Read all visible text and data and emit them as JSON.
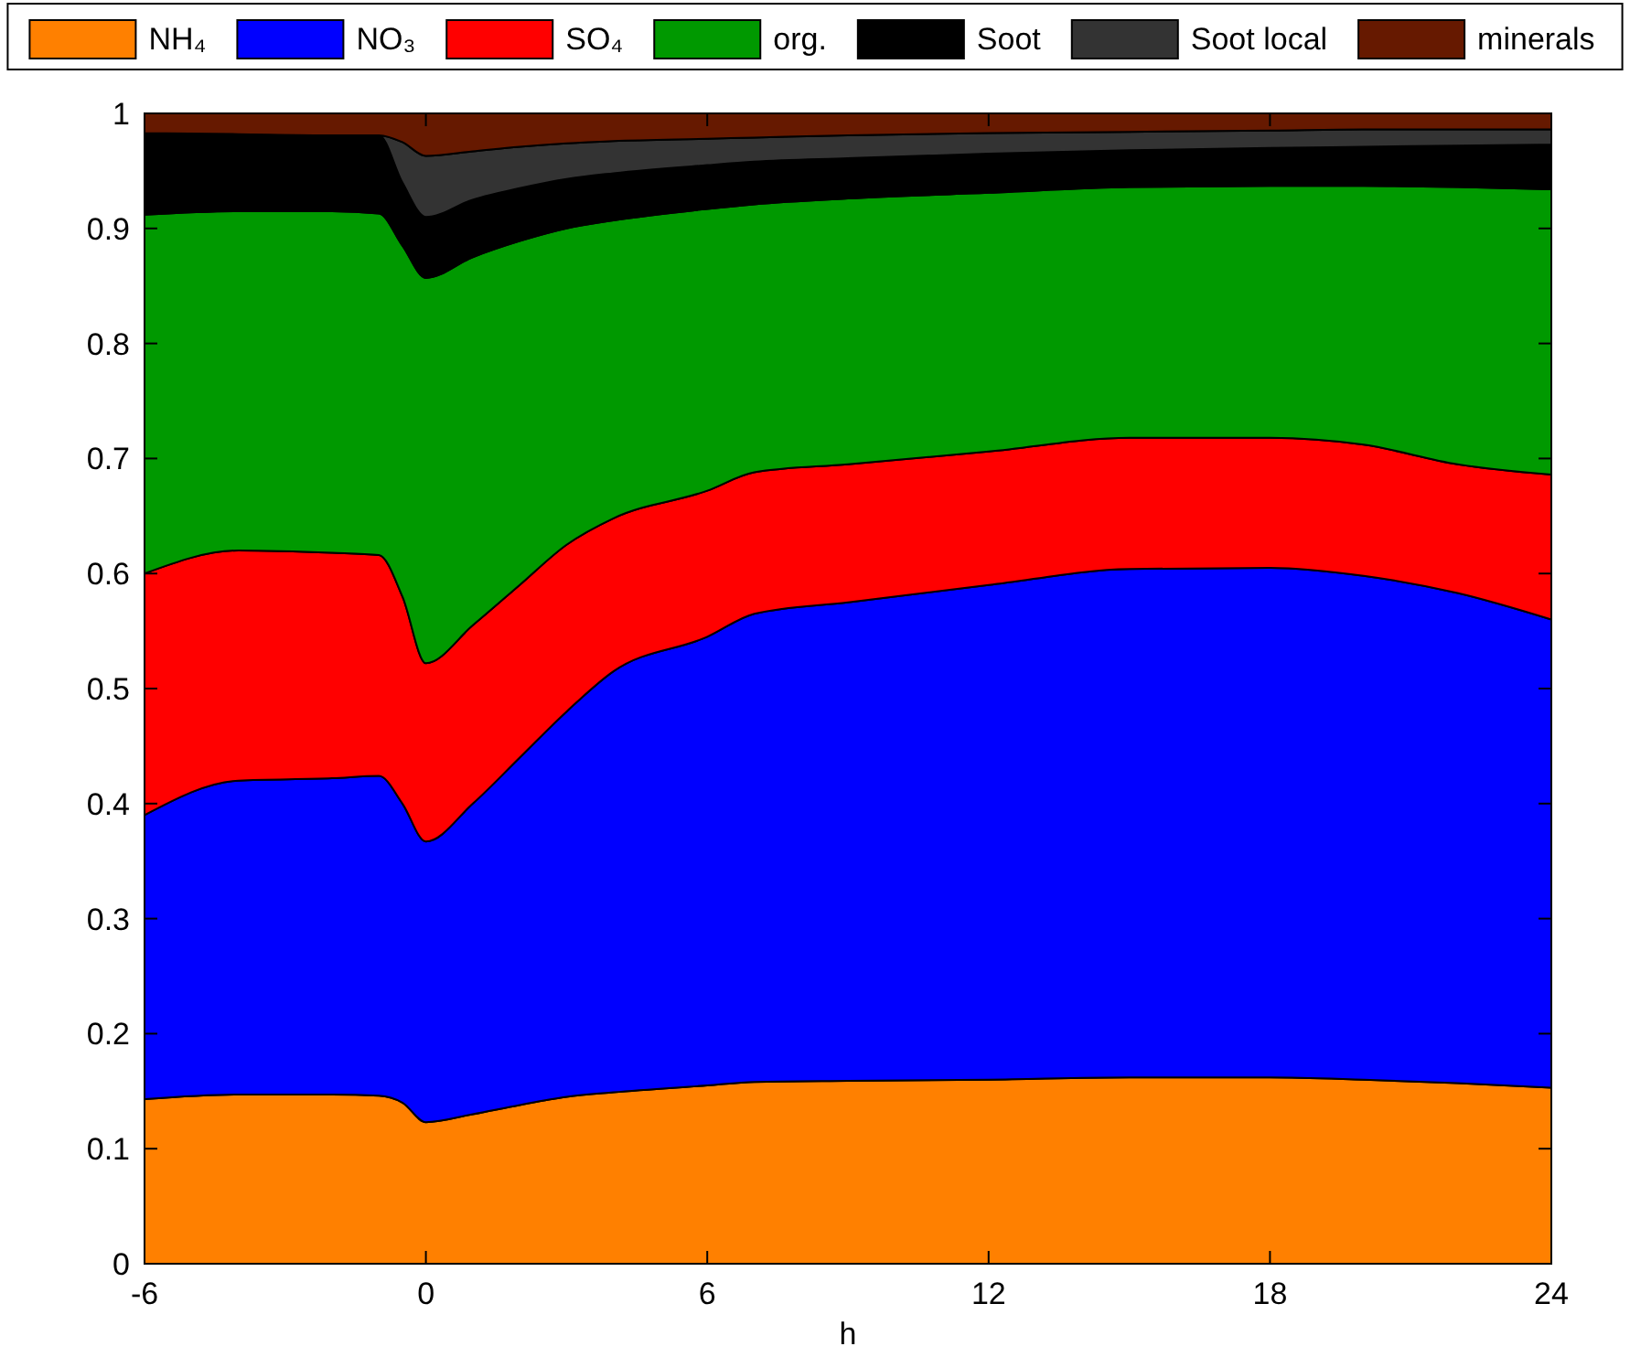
{
  "chart_data": {
    "type": "area",
    "stacked": true,
    "xlabel": "h",
    "legend": "top",
    "x": [
      -6,
      -4,
      -2,
      -1,
      -0.5,
      0,
      1,
      2,
      3,
      4,
      6,
      7,
      9,
      12,
      15,
      18,
      20,
      22,
      24
    ],
    "xlim": [
      -6,
      24
    ],
    "xticks": [
      -6,
      0,
      6,
      12,
      18,
      24
    ],
    "ylim": [
      0,
      1
    ],
    "yticks": [
      0,
      0.1,
      0.2,
      0.3,
      0.4,
      0.5,
      0.6,
      0.7,
      0.8,
      0.9,
      1
    ],
    "grid": false,
    "series": [
      {
        "name": "NH₄",
        "color": "#ff8000",
        "values": [
          0.143,
          0.147,
          0.147,
          0.146,
          0.14,
          0.123,
          0.13,
          0.138,
          0.145,
          0.149,
          0.155,
          0.158,
          0.159,
          0.16,
          0.162,
          0.162,
          0.16,
          0.157,
          0.153
        ]
      },
      {
        "name": "NO₃",
        "color": "#0000ff",
        "values": [
          0.247,
          0.273,
          0.275,
          0.278,
          0.26,
          0.244,
          0.27,
          0.302,
          0.335,
          0.366,
          0.39,
          0.407,
          0.416,
          0.43,
          0.442,
          0.443,
          0.438,
          0.426,
          0.407
        ]
      },
      {
        "name": "SO₄",
        "color": "#ff0000",
        "values": [
          0.21,
          0.2,
          0.196,
          0.192,
          0.18,
          0.155,
          0.155,
          0.15,
          0.145,
          0.133,
          0.127,
          0.123,
          0.12,
          0.116,
          0.114,
          0.113,
          0.114,
          0.112,
          0.126
        ]
      },
      {
        "name": "org.",
        "color": "#009900",
        "values": [
          0.312,
          0.295,
          0.297,
          0.297,
          0.305,
          0.335,
          0.32,
          0.299,
          0.275,
          0.259,
          0.245,
          0.233,
          0.231,
          0.225,
          0.218,
          0.219,
          0.225,
          0.241,
          0.248
        ]
      },
      {
        "name": "Soot",
        "color": "#000000",
        "values": [
          0.071,
          0.067,
          0.066,
          0.068,
          0.055,
          0.053,
          0.05,
          0.046,
          0.043,
          0.041,
          0.038,
          0.037,
          0.035,
          0.034,
          0.032,
          0.033,
          0.034,
          0.036,
          0.039
        ]
      },
      {
        "name": "Soot local",
        "color": "#333333",
        "values": [
          0,
          0,
          0,
          0,
          0.035,
          0.053,
          0.042,
          0.036,
          0.031,
          0.028,
          0.023,
          0.021,
          0.02,
          0.018,
          0.016,
          0.015,
          0.015,
          0.014,
          0.013
        ]
      },
      {
        "name": "minerals",
        "color": "#661900",
        "values": [
          0.017,
          0.018,
          0.019,
          0.019,
          0.025,
          0.037,
          0.033,
          0.029,
          0.026,
          0.024,
          0.022,
          0.021,
          0.019,
          0.017,
          0.016,
          0.015,
          0.014,
          0.014,
          0.014
        ]
      }
    ]
  }
}
